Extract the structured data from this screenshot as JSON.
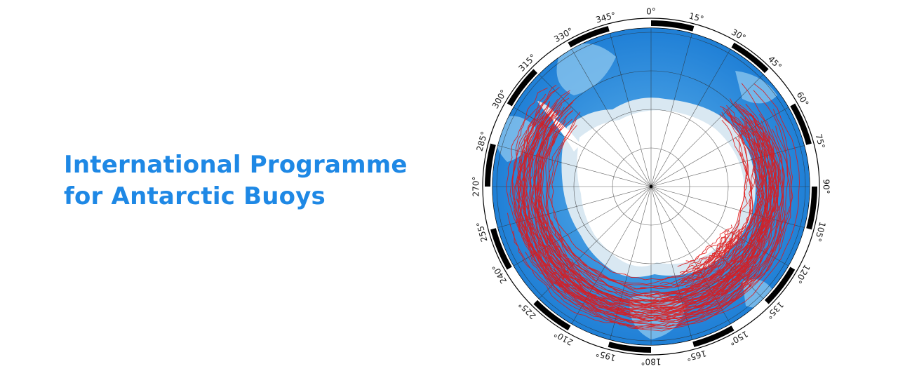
{
  "title": {
    "line1": "International Programme",
    "line2": "for Antarctic Buoys"
  },
  "map": {
    "projection": "south-polar-stereographic",
    "longitude_labels": [
      "0°",
      "15°",
      "30°",
      "45°",
      "60°",
      "75°",
      "90°",
      "105°",
      "120°",
      "135°",
      "150°",
      "165°",
      "180°",
      "195°",
      "210°",
      "225°",
      "240°",
      "255°",
      "270°",
      "285°",
      "300°",
      "315°",
      "330°",
      "345°"
    ],
    "colors": {
      "ocean_deep": "#1f7fd6",
      "ocean_shallow": "#8fc8ef",
      "ice_shelf": "#dfe9f0",
      "land": "#ffffff",
      "buoy_track": "#e01818",
      "title": "#1e88e5"
    }
  }
}
